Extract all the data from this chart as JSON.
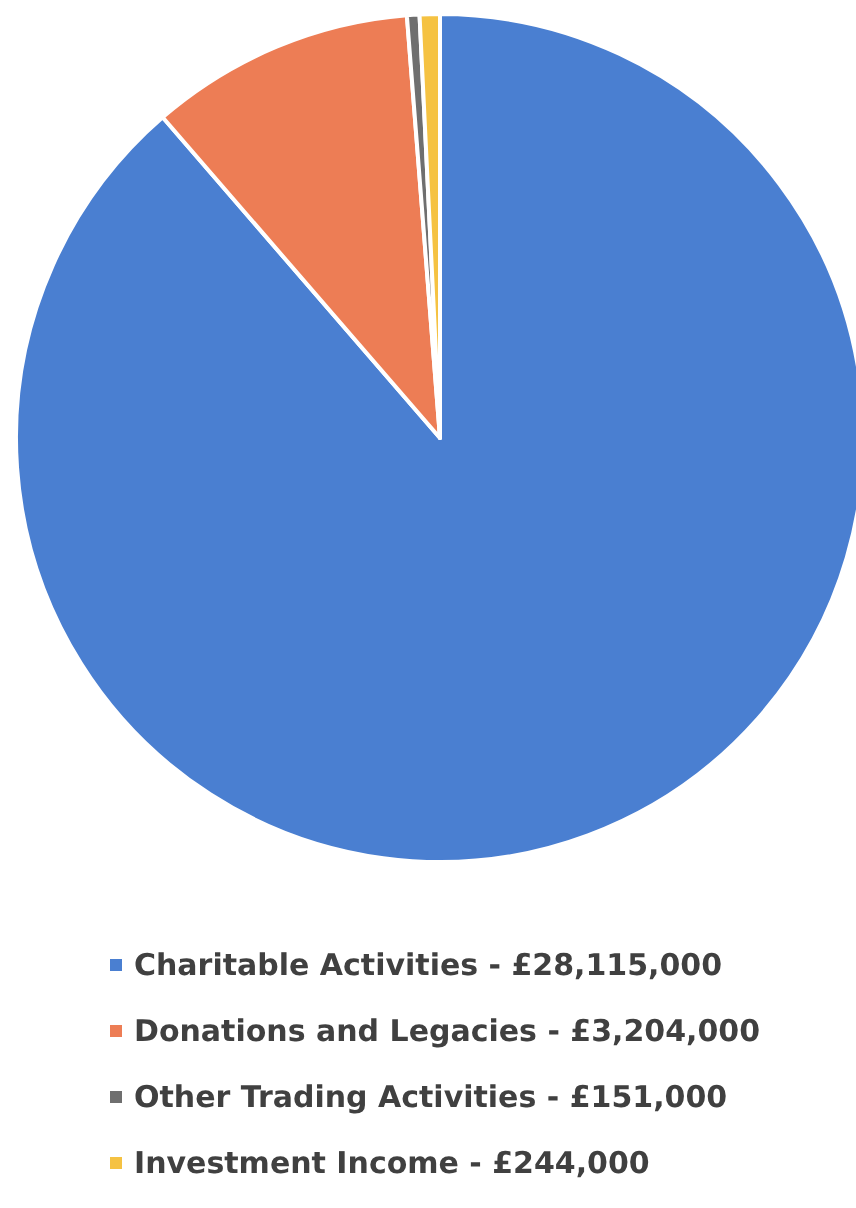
{
  "chart_data": {
    "type": "pie",
    "categories": [
      "Charitable Activities",
      "Donations and Legacies",
      "Other Trading Activities",
      "Investment Income"
    ],
    "values": [
      28115000,
      3204000,
      151000,
      244000
    ],
    "value_labels": [
      "£28,115,000",
      "£3,204,000",
      "£151,000",
      "£244,000"
    ],
    "colors": [
      "#4a7fd1",
      "#ed7d55",
      "#6f6f6f",
      "#f5c242"
    ],
    "legend": "bottom"
  }
}
